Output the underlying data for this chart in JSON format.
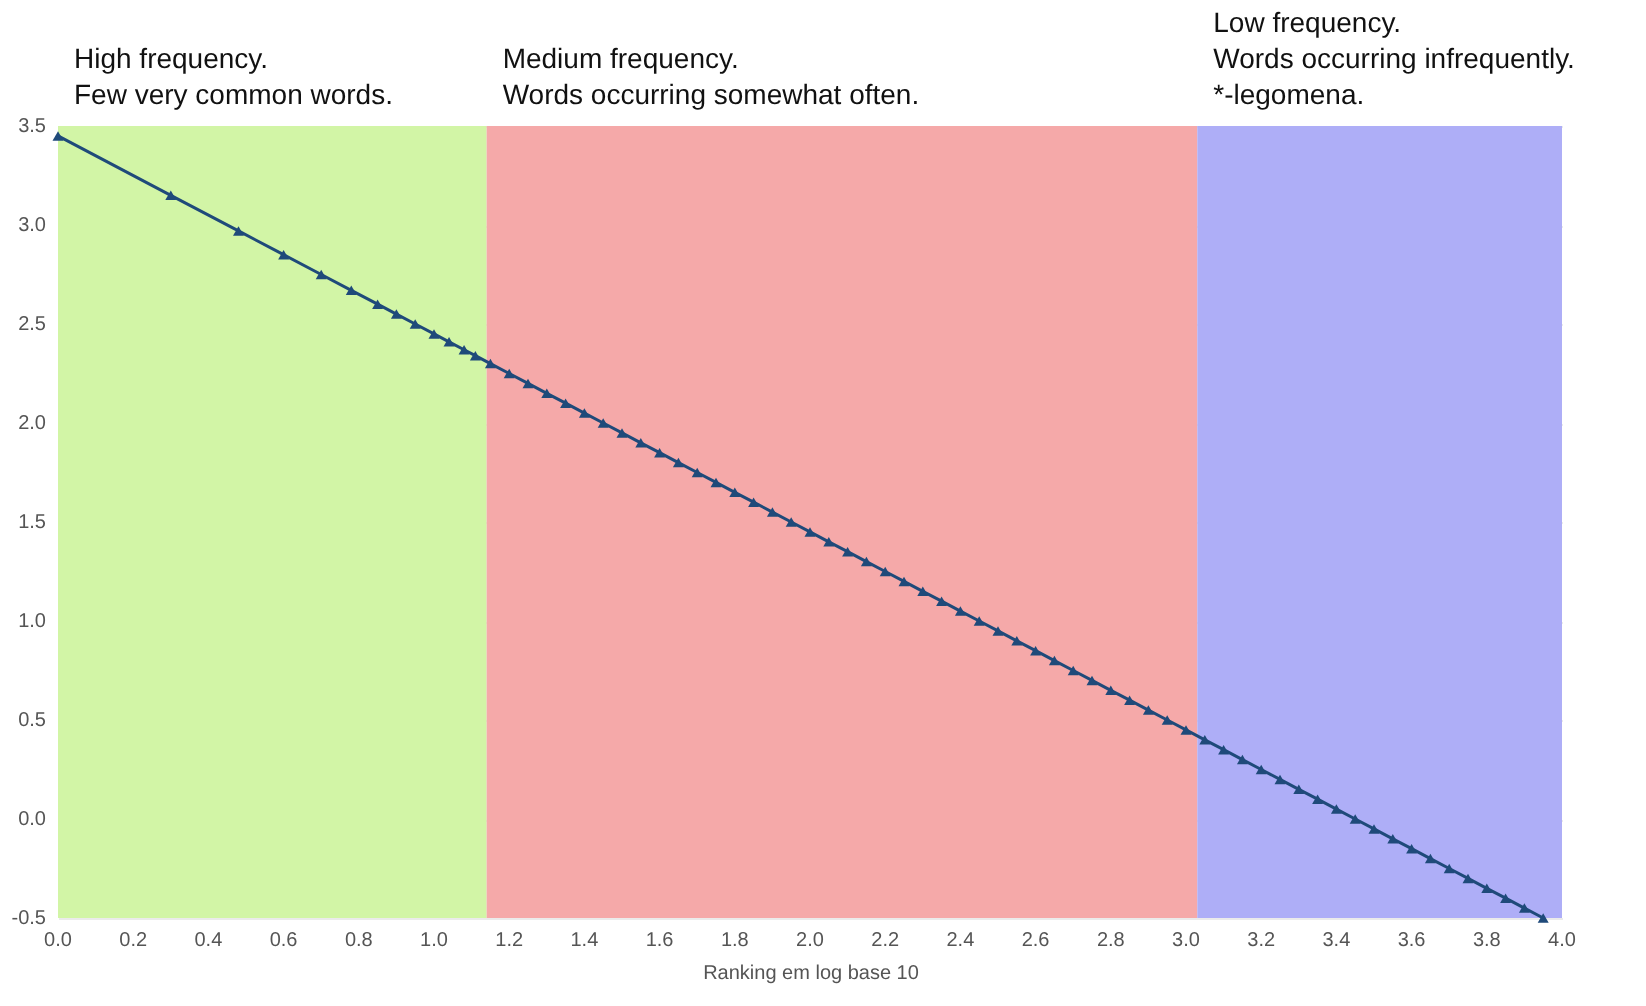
{
  "chart_data": {
    "type": "line",
    "xlabel": "Ranking em log base 10",
    "x": [
      0,
      0.3,
      0.48,
      0.6,
      0.7,
      0.78,
      0.85,
      0.9,
      0.95,
      1.0,
      1.04,
      1.08,
      1.11,
      1.15,
      1.2,
      1.25,
      1.3,
      1.35,
      1.4,
      1.45,
      1.5,
      1.55,
      1.6,
      1.65,
      1.7,
      1.75,
      1.8,
      1.85,
      1.9,
      1.95,
      2.0,
      2.05,
      2.1,
      2.15,
      2.2,
      2.25,
      2.3,
      2.35,
      2.4,
      2.45,
      2.5,
      2.55,
      2.6,
      2.65,
      2.7,
      2.75,
      2.8,
      2.85,
      2.9,
      2.95,
      3.0,
      3.05,
      3.1,
      3.15,
      3.2,
      3.25,
      3.3,
      3.35,
      3.4,
      3.45,
      3.5,
      3.55,
      3.6,
      3.65,
      3.7,
      3.75,
      3.8,
      3.85,
      3.9,
      3.95
    ],
    "series": [
      {
        "color": "#1f4a7a",
        "values": [
          3.45,
          3.15,
          2.97,
          2.85,
          2.75,
          2.67,
          2.6,
          2.55,
          2.5,
          2.45,
          2.41,
          2.37,
          2.34,
          2.3,
          2.25,
          2.2,
          2.15,
          2.1,
          2.05,
          2.0,
          1.95,
          1.9,
          1.85,
          1.8,
          1.75,
          1.7,
          1.65,
          1.6,
          1.55,
          1.5,
          1.45,
          1.4,
          1.35,
          1.3,
          1.25,
          1.2,
          1.15,
          1.1,
          1.05,
          1.0,
          0.95,
          0.9,
          0.85,
          0.8,
          0.75,
          0.7,
          0.65,
          0.6,
          0.55,
          0.5,
          0.45,
          0.4,
          0.35,
          0.3,
          0.25,
          0.2,
          0.15,
          0.1,
          0.05,
          0.0,
          -0.05,
          -0.1,
          -0.15,
          -0.2,
          -0.25,
          -0.3,
          -0.35,
          -0.4,
          -0.45,
          -0.5
        ]
      }
    ],
    "xlim": [
      0,
      4.0
    ],
    "xticks": [
      {
        "value": 0,
        "label": "0.0"
      },
      0.2,
      0.4,
      0.6,
      0.8,
      {
        "value": 1,
        "label": "1.0"
      },
      1.2,
      1.4,
      1.6,
      1.8,
      {
        "value": 2,
        "label": "2.0"
      },
      2.2,
      2.4,
      2.6,
      2.8,
      {
        "value": 3,
        "label": "3.0"
      },
      3.2,
      3.4,
      3.6,
      3.8,
      {
        "value": 4,
        "label": "4.0"
      }
    ],
    "ylim": [
      -0.5,
      3.5
    ],
    "yticks": [
      -0.5,
      {
        "value": 0,
        "label": "0.0"
      },
      0.5,
      {
        "value": 1,
        "label": "1.0"
      },
      1.5,
      {
        "value": 2,
        "label": "2.0"
      },
      2.5,
      {
        "value": 3,
        "label": "3.0"
      },
      3.5
    ],
    "bands": [
      {
        "axis": "x",
        "from": 0,
        "to": 1.14,
        "label": "High frequency.\nFew very common words.",
        "color": "#d2f5a6"
      },
      {
        "axis": "x",
        "from": 1.14,
        "to": 3.03,
        "label": "Medium frequency.\nWords occurring somewhat often.",
        "color": "#f5a9a9"
      },
      {
        "axis": "x",
        "from": 3.03,
        "to": 4.0,
        "label": "Low frequency.\nWords occurring infrequently.\n*-legomena.",
        "color": "#aeaef7"
      }
    ],
    "grid": "y",
    "marker": "triangle",
    "line_style": "solid"
  }
}
